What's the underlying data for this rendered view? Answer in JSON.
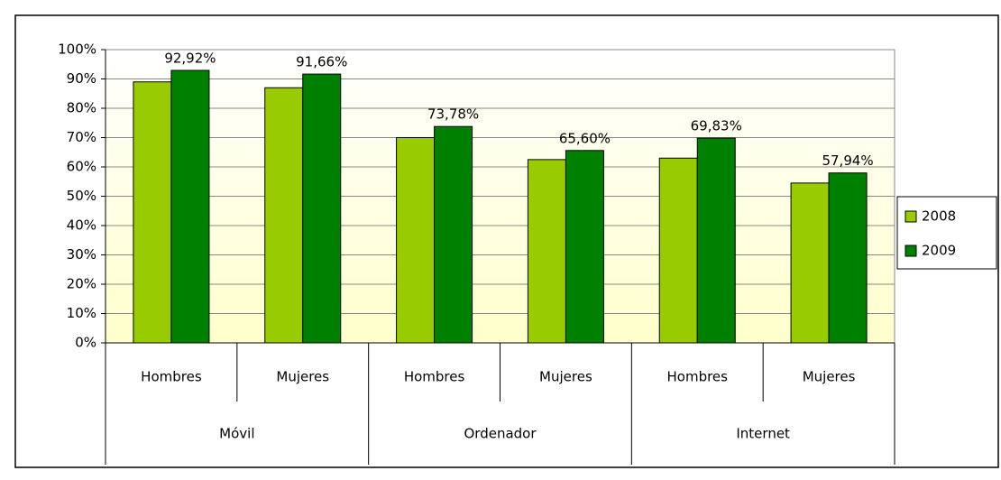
{
  "chart_data": {
    "type": "bar",
    "categories": [
      "Hombres",
      "Mujeres",
      "Hombres",
      "Mujeres",
      "Hombres",
      "Mujeres"
    ],
    "groups": [
      "Móvil",
      "Ordenador",
      "Internet"
    ],
    "series": [
      {
        "name": "2008",
        "color": "#99cc00",
        "values": [
          89,
          87,
          70,
          62.5,
          63,
          54.5
        ]
      },
      {
        "name": "2009",
        "color": "#008000",
        "values": [
          92.92,
          91.66,
          73.78,
          65.6,
          69.83,
          57.94
        ],
        "value_labels": [
          "92,92%",
          "91,66%",
          "73,78%",
          "65,60%",
          "69,83%",
          "57,94%"
        ]
      }
    ],
    "ylim": [
      0,
      100
    ],
    "yticks": [
      {
        "value": 0,
        "label": "0%"
      },
      {
        "value": 10,
        "label": "10%"
      },
      {
        "value": 20,
        "label": "20%"
      },
      {
        "value": 30,
        "label": "30%"
      },
      {
        "value": 40,
        "label": "40%"
      },
      {
        "value": 50,
        "label": "50%"
      },
      {
        "value": 60,
        "label": "60%"
      },
      {
        "value": 70,
        "label": "70%"
      },
      {
        "value": 80,
        "label": "80%"
      },
      {
        "value": 90,
        "label": "90%"
      },
      {
        "value": 100,
        "label": "100%"
      }
    ],
    "grid": true,
    "legend": "right"
  }
}
